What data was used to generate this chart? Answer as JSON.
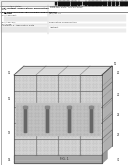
{
  "bg_color": "#ffffff",
  "text_color": "#333333",
  "barcode_color": "#111111",
  "header_line_color": "#555555",
  "diagram_bg": "#ffffff",
  "dot_fill": "#cccccc",
  "dot_stroke": "#888888",
  "block_light": "#e8e8e8",
  "block_mid": "#d0d0d0",
  "block_dark": "#b0b0b0",
  "block_darker": "#909090",
  "stripe_light": "#c8c8c8",
  "stripe_dark": "#a0a0a0",
  "pillar_color": "#888888",
  "pillar_dark": "#606060",
  "line_color": "#555555",
  "ref_color": "#222222"
}
